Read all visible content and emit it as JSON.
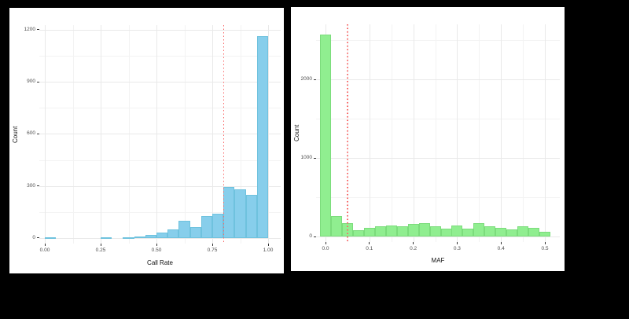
{
  "figure": {
    "background": "#000000",
    "panel_background": "#ffffff",
    "major_grid_color": "#e9e9e9",
    "minor_grid_color": "#f3f3f3",
    "tick_text_color": "#4d4d4d",
    "axis_title_color": "#111111"
  },
  "chart_data": [
    {
      "type": "bar",
      "subtype": "histogram",
      "xlabel": "Call Rate",
      "ylabel": "Count",
      "bar_color": "#87CEEB",
      "bar_border_color": "#6fc2de",
      "threshold_line": {
        "x": 0.8,
        "color": "#f96a6a",
        "style": "dotted"
      },
      "bin_width": 0.05,
      "bin_left_edges": [
        0.0,
        0.25,
        0.35,
        0.4,
        0.45,
        0.5,
        0.55,
        0.6,
        0.65,
        0.7,
        0.75,
        0.8,
        0.85,
        0.9,
        0.95
      ],
      "counts": [
        5,
        6,
        5,
        8,
        16,
        30,
        50,
        100,
        62,
        125,
        140,
        295,
        280,
        250,
        1165
      ],
      "x_ticks": [
        0,
        0.25,
        0.5,
        0.75,
        1
      ],
      "x_tick_labels": [
        "0.00",
        "0.25",
        "0.50",
        "0.75",
        "1.00"
      ],
      "x_minor_ticks": [
        0.125,
        0.375,
        0.625,
        0.875
      ],
      "y_ticks": [
        0,
        300,
        600,
        900,
        1200
      ],
      "y_tick_labels": [
        "0",
        "300",
        "600",
        "900",
        "1200"
      ],
      "y_minor_ticks": [
        150,
        450,
        750,
        1050
      ],
      "xlim": [
        -0.0246,
        1.0563
      ],
      "ylim": [
        -32,
        1226
      ],
      "grid": "on",
      "legend": "none"
    },
    {
      "type": "bar",
      "subtype": "histogram",
      "xlabel": "MAF",
      "ylabel": "Count",
      "bar_color": "#90EE90",
      "bar_border_color": "#7cdc7c",
      "threshold_line": {
        "x": 0.05,
        "color": "#f96a6a",
        "style": "dotted"
      },
      "bin_width": 0.025,
      "bin_left_edges": [
        -0.0125,
        0.0125,
        0.0375,
        0.0625,
        0.0875,
        0.1125,
        0.1375,
        0.1625,
        0.1875,
        0.2125,
        0.2375,
        0.2625,
        0.2875,
        0.3125,
        0.3375,
        0.3625,
        0.3875,
        0.4125,
        0.4375,
        0.4625,
        0.4875
      ],
      "counts": [
        2570,
        265,
        175,
        80,
        115,
        130,
        140,
        135,
        165,
        175,
        135,
        105,
        145,
        105,
        170,
        130,
        115,
        90,
        135,
        110,
        60
      ],
      "x_ticks": [
        0,
        0.1,
        0.2,
        0.3,
        0.4,
        0.5
      ],
      "x_tick_labels": [
        "0.0",
        "0.1",
        "0.2",
        "0.3",
        "0.4",
        "0.5"
      ],
      "x_minor_ticks": [
        0.05,
        0.15,
        0.25,
        0.35,
        0.45
      ],
      "y_ticks": [
        0,
        1000,
        2000
      ],
      "y_tick_labels": [
        "0",
        "1000",
        "2000"
      ],
      "y_minor_ticks": [
        500,
        1500,
        2500
      ],
      "xlim": [
        -0.0215,
        0.534
      ],
      "ylim": [
        -70,
        2700
      ],
      "grid": "on",
      "legend": "none"
    }
  ]
}
